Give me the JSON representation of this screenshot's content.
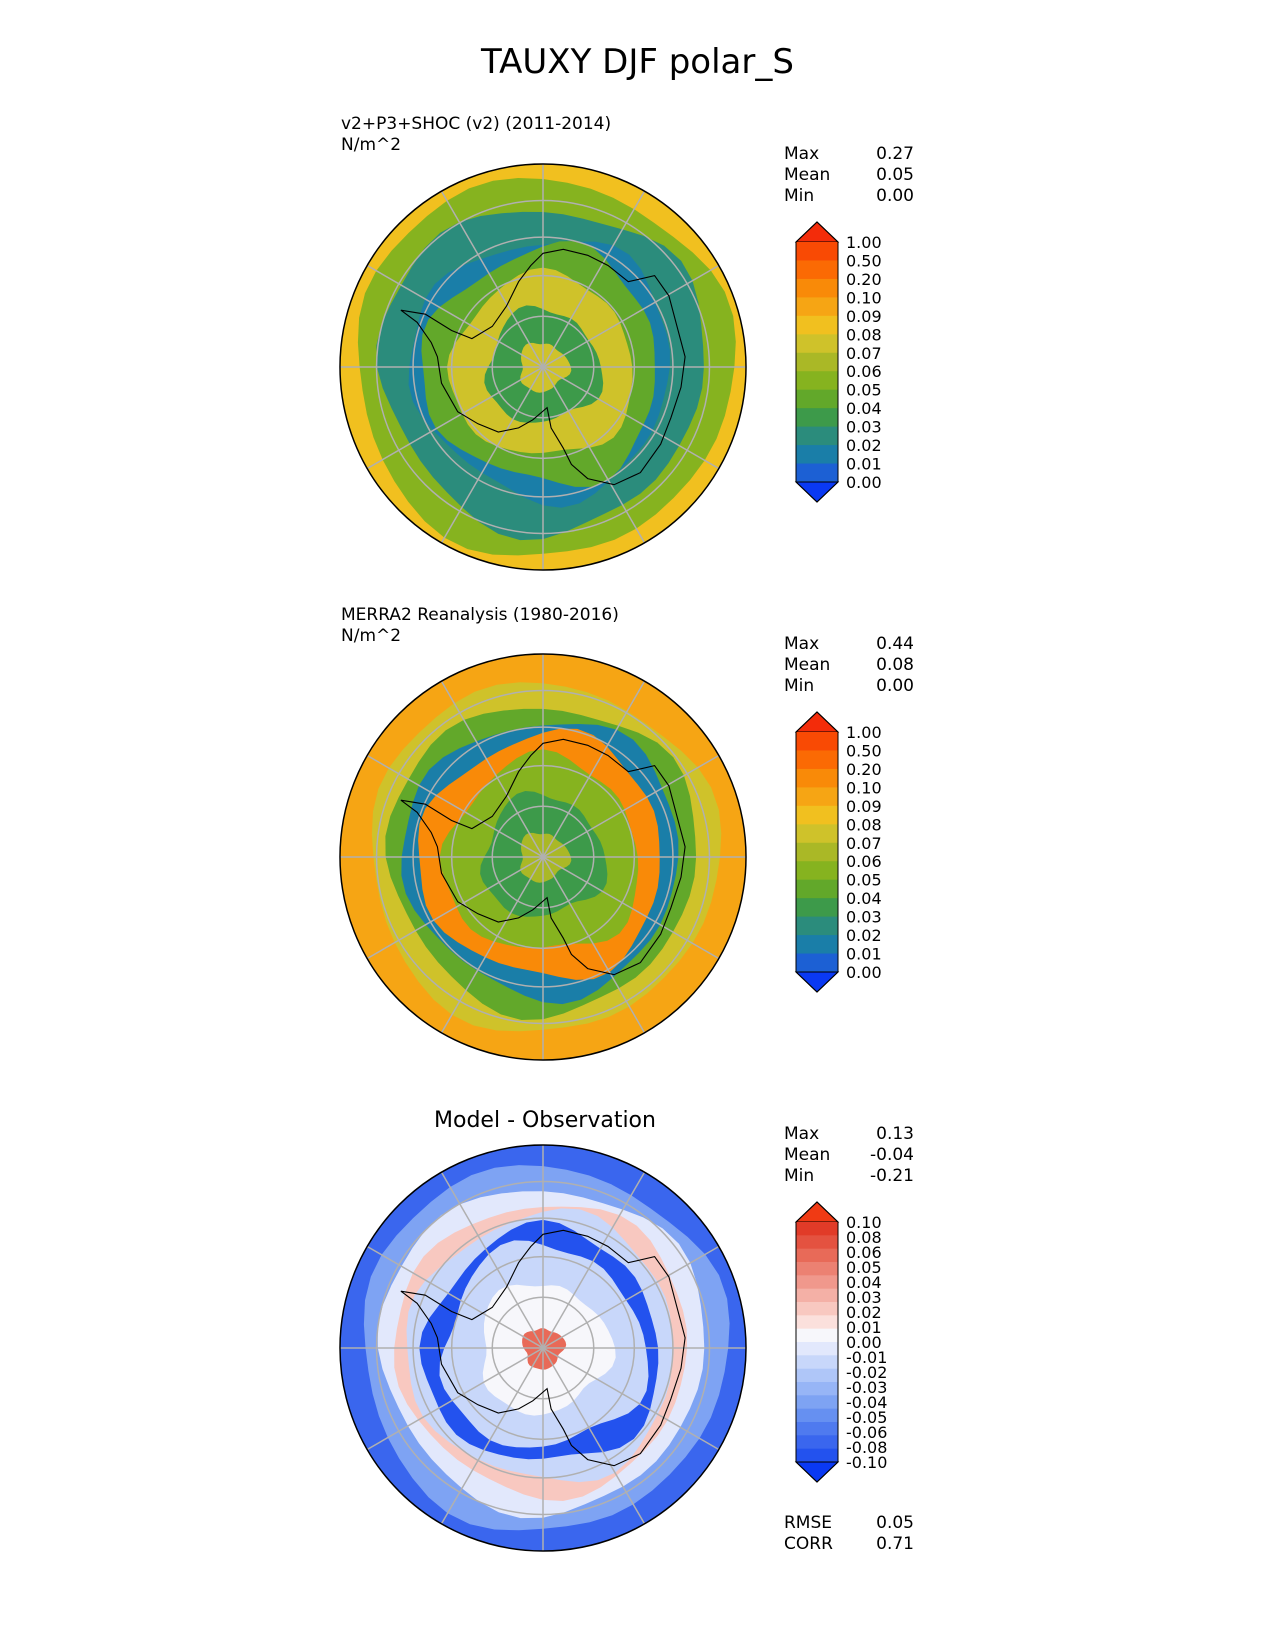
{
  "figure_title": "TAUXY DJF polar_S",
  "colors": {
    "seq_levels": [
      "#0a39f3",
      "#1c60d4",
      "#1a7ea8",
      "#2b8c7c",
      "#3d9a4a",
      "#62a82a",
      "#86b31f",
      "#aab826",
      "#cfc22a",
      "#f1c01f",
      "#f6a514",
      "#f98a08",
      "#fb6a04",
      "#f94a04",
      "#f32c0a"
    ],
    "diff_levels": [
      "#0a39f3",
      "#2352ee",
      "#3a66ee",
      "#4f7aef",
      "#6690f1",
      "#7ea3f3",
      "#97b5f6",
      "#afc6f8",
      "#c8d7fa",
      "#e2e8fc",
      "#f7f7fb",
      "#fbe0dc",
      "#f8c8c0",
      "#f4b0a6",
      "#f0988c",
      "#ec8172",
      "#e86a58",
      "#e45240",
      "#e13b28",
      "#f03a14"
    ],
    "coast": "#000000",
    "grid": "#b0b0b0"
  },
  "panels": [
    {
      "title_line1": "v2+P3+SHOC (v2) (2011-2014)",
      "title_line2": "N/m^2",
      "stats": [
        {
          "label": "Max",
          "value": "0.27"
        },
        {
          "label": "Mean",
          "value": "0.05"
        },
        {
          "label": "Min",
          "value": "0.00"
        }
      ],
      "colorbar_ticks": [
        "1.00",
        "0.50",
        "0.20",
        "0.10",
        "0.09",
        "0.08",
        "0.07",
        "0.06",
        "0.05",
        "0.04",
        "0.03",
        "0.02",
        "0.01",
        "0.00"
      ]
    },
    {
      "title_line1": "MERRA2 Reanalysis (1980-2016)",
      "title_line2": "N/m^2",
      "stats": [
        {
          "label": "Max",
          "value": "0.44"
        },
        {
          "label": "Mean",
          "value": "0.08"
        },
        {
          "label": "Min",
          "value": "0.00"
        }
      ],
      "colorbar_ticks": [
        "1.00",
        "0.50",
        "0.20",
        "0.10",
        "0.09",
        "0.08",
        "0.07",
        "0.06",
        "0.05",
        "0.04",
        "0.03",
        "0.02",
        "0.01",
        "0.00"
      ]
    },
    {
      "title_center": "Model - Observation",
      "stats": [
        {
          "label": "Max",
          "value": "0.13"
        },
        {
          "label": "Mean",
          "value": "-0.04"
        },
        {
          "label": "Min",
          "value": "-0.21"
        }
      ],
      "colorbar_ticks": [
        "0.10",
        "0.08",
        "0.06",
        "0.05",
        "0.04",
        "0.03",
        "0.02",
        "0.01",
        "0.00",
        "-0.01",
        "-0.02",
        "-0.03",
        "-0.04",
        "-0.05",
        "-0.06",
        "-0.08",
        "-0.10"
      ],
      "bottom_stats": [
        {
          "label": "RMSE",
          "value": "0.05"
        },
        {
          "label": "CORR",
          "value": "0.71"
        }
      ]
    }
  ],
  "chart_data": [
    {
      "type": "heatmap",
      "title": "v2+P3+SHOC (v2) (2011-2014)",
      "units": "N/m^2",
      "projection": "south polar stereographic",
      "colorbar_levels": [
        0.0,
        0.01,
        0.02,
        0.03,
        0.04,
        0.05,
        0.06,
        0.07,
        0.08,
        0.09,
        0.1,
        0.2,
        0.5,
        1.0
      ],
      "max": 0.27,
      "mean": 0.05,
      "min": 0.0
    },
    {
      "type": "heatmap",
      "title": "MERRA2 Reanalysis (1980-2016)",
      "units": "N/m^2",
      "projection": "south polar stereographic",
      "colorbar_levels": [
        0.0,
        0.01,
        0.02,
        0.03,
        0.04,
        0.05,
        0.06,
        0.07,
        0.08,
        0.09,
        0.1,
        0.2,
        0.5,
        1.0
      ],
      "max": 0.44,
      "mean": 0.08,
      "min": 0.0
    },
    {
      "type": "heatmap",
      "title": "Model - Observation",
      "projection": "south polar stereographic",
      "colorbar_levels": [
        -0.1,
        -0.08,
        -0.06,
        -0.05,
        -0.04,
        -0.03,
        -0.02,
        -0.01,
        0.0,
        0.01,
        0.02,
        0.03,
        0.04,
        0.05,
        0.06,
        0.08,
        0.1
      ],
      "max": 0.13,
      "mean": -0.04,
      "min": -0.21,
      "rmse": 0.05,
      "corr": 0.71
    }
  ]
}
